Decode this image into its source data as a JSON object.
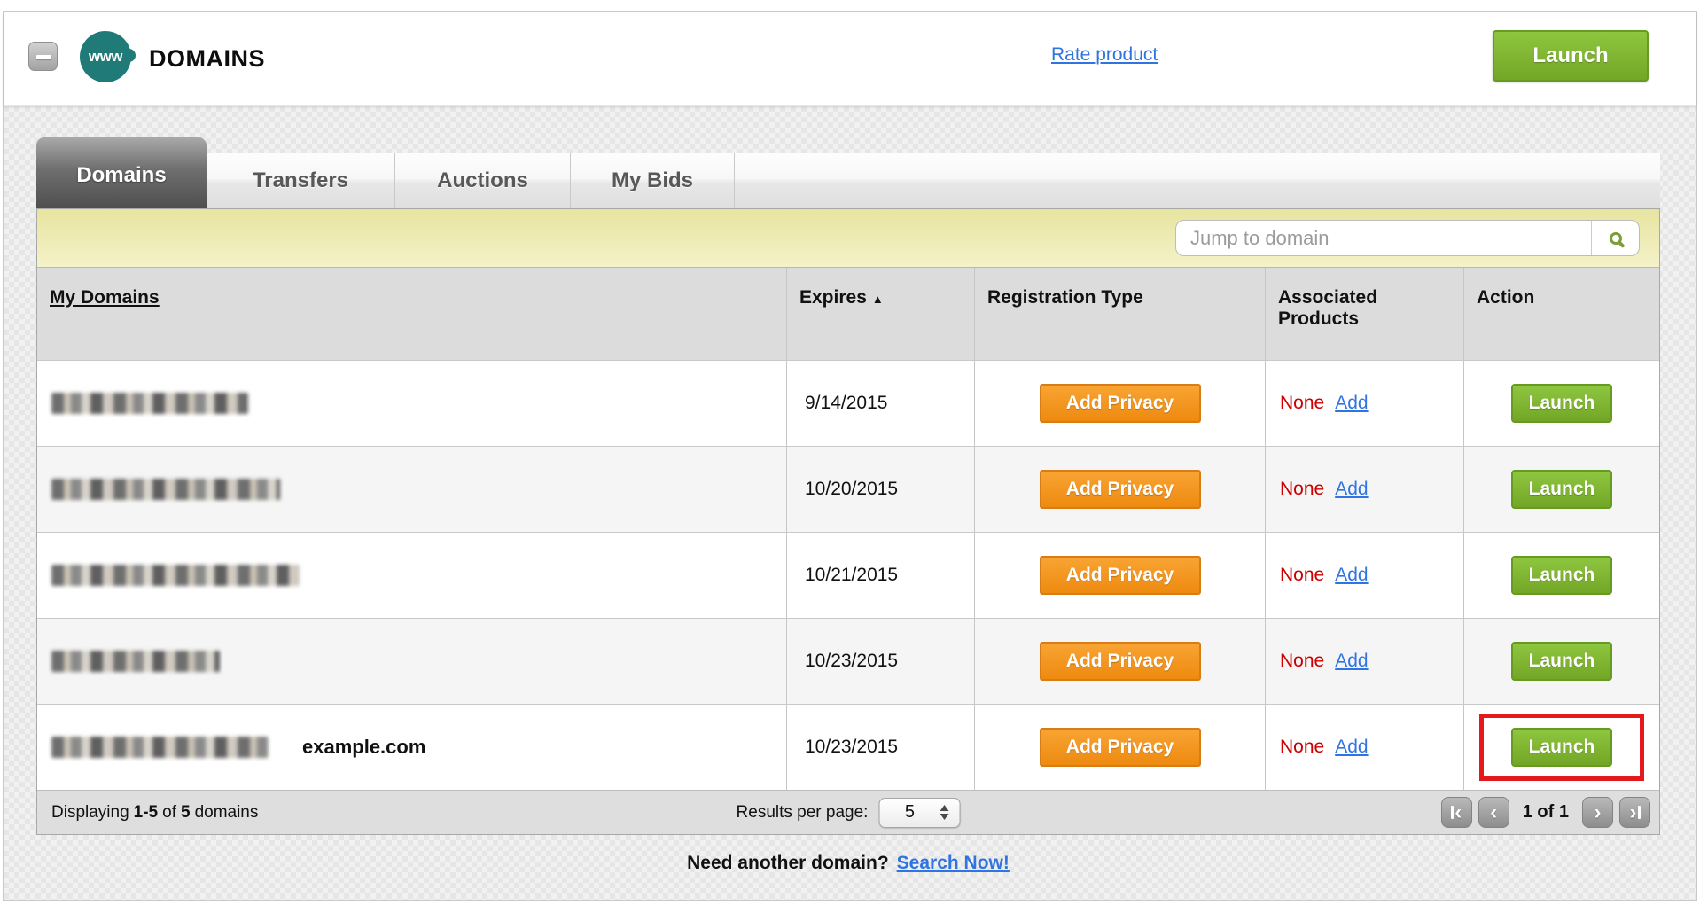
{
  "colors": {
    "teal": "#1f7a78",
    "green": "#7fb22e",
    "orange": "#f6921e",
    "blue": "#2f74e0",
    "red": "#cc0000",
    "highlight": "#e3191c"
  },
  "header": {
    "icon_label": "www",
    "title": "DOMAINS",
    "rate_product_link": "Rate product",
    "launch_button": "Launch"
  },
  "tabs": [
    {
      "label": "Domains",
      "active": true
    },
    {
      "label": "Transfers",
      "active": false
    },
    {
      "label": "Auctions",
      "active": false
    },
    {
      "label": "My Bids",
      "active": false
    }
  ],
  "search": {
    "placeholder": "Jump to domain"
  },
  "table": {
    "columns": {
      "domains": "My Domains",
      "expires": "Expires",
      "registration_type": "Registration Type",
      "associated_products": "Associated Products",
      "action": "Action"
    },
    "sort": {
      "column": "Expires",
      "direction": "ascending",
      "icon": "▲"
    },
    "rows": [
      {
        "redacted": true,
        "redact_style": "width:222px",
        "annotation": "",
        "expires": "9/14/2015",
        "privacy_button": "Add Privacy",
        "associated_value": "None",
        "associated_link": "Add",
        "action_button": "Launch",
        "highlighted": false
      },
      {
        "redacted": true,
        "redact_style": "width:258px",
        "annotation": "",
        "expires": "10/20/2015",
        "privacy_button": "Add Privacy",
        "associated_value": "None",
        "associated_link": "Add",
        "action_button": "Launch",
        "highlighted": false
      },
      {
        "redacted": true,
        "redact_style": "width:280px",
        "annotation": "",
        "expires": "10/21/2015",
        "privacy_button": "Add Privacy",
        "associated_value": "None",
        "associated_link": "Add",
        "action_button": "Launch",
        "highlighted": false
      },
      {
        "redacted": true,
        "redact_style": "width:190px",
        "annotation": "",
        "expires": "10/23/2015",
        "privacy_button": "Add Privacy",
        "associated_value": "None",
        "associated_link": "Add",
        "action_button": "Launch",
        "highlighted": false
      },
      {
        "redacted": true,
        "redact_style": "width:245px",
        "annotation": "example.com",
        "expires": "10/23/2015",
        "privacy_button": "Add Privacy",
        "associated_value": "None",
        "associated_link": "Add",
        "action_button": "Launch",
        "highlighted": true
      }
    ],
    "footer": {
      "displaying_label": "Displaying",
      "range": "1-5",
      "of_label": "of",
      "total": "5",
      "domains_label": "domains",
      "results_per_page_label": "Results per page:",
      "results_per_page_value": "5",
      "pagination": {
        "page_status": "1 of 1",
        "prev_glyph": "‹",
        "next_glyph": "›"
      }
    }
  },
  "bottom": {
    "prompt": "Need another domain?",
    "link": "Search Now!"
  }
}
